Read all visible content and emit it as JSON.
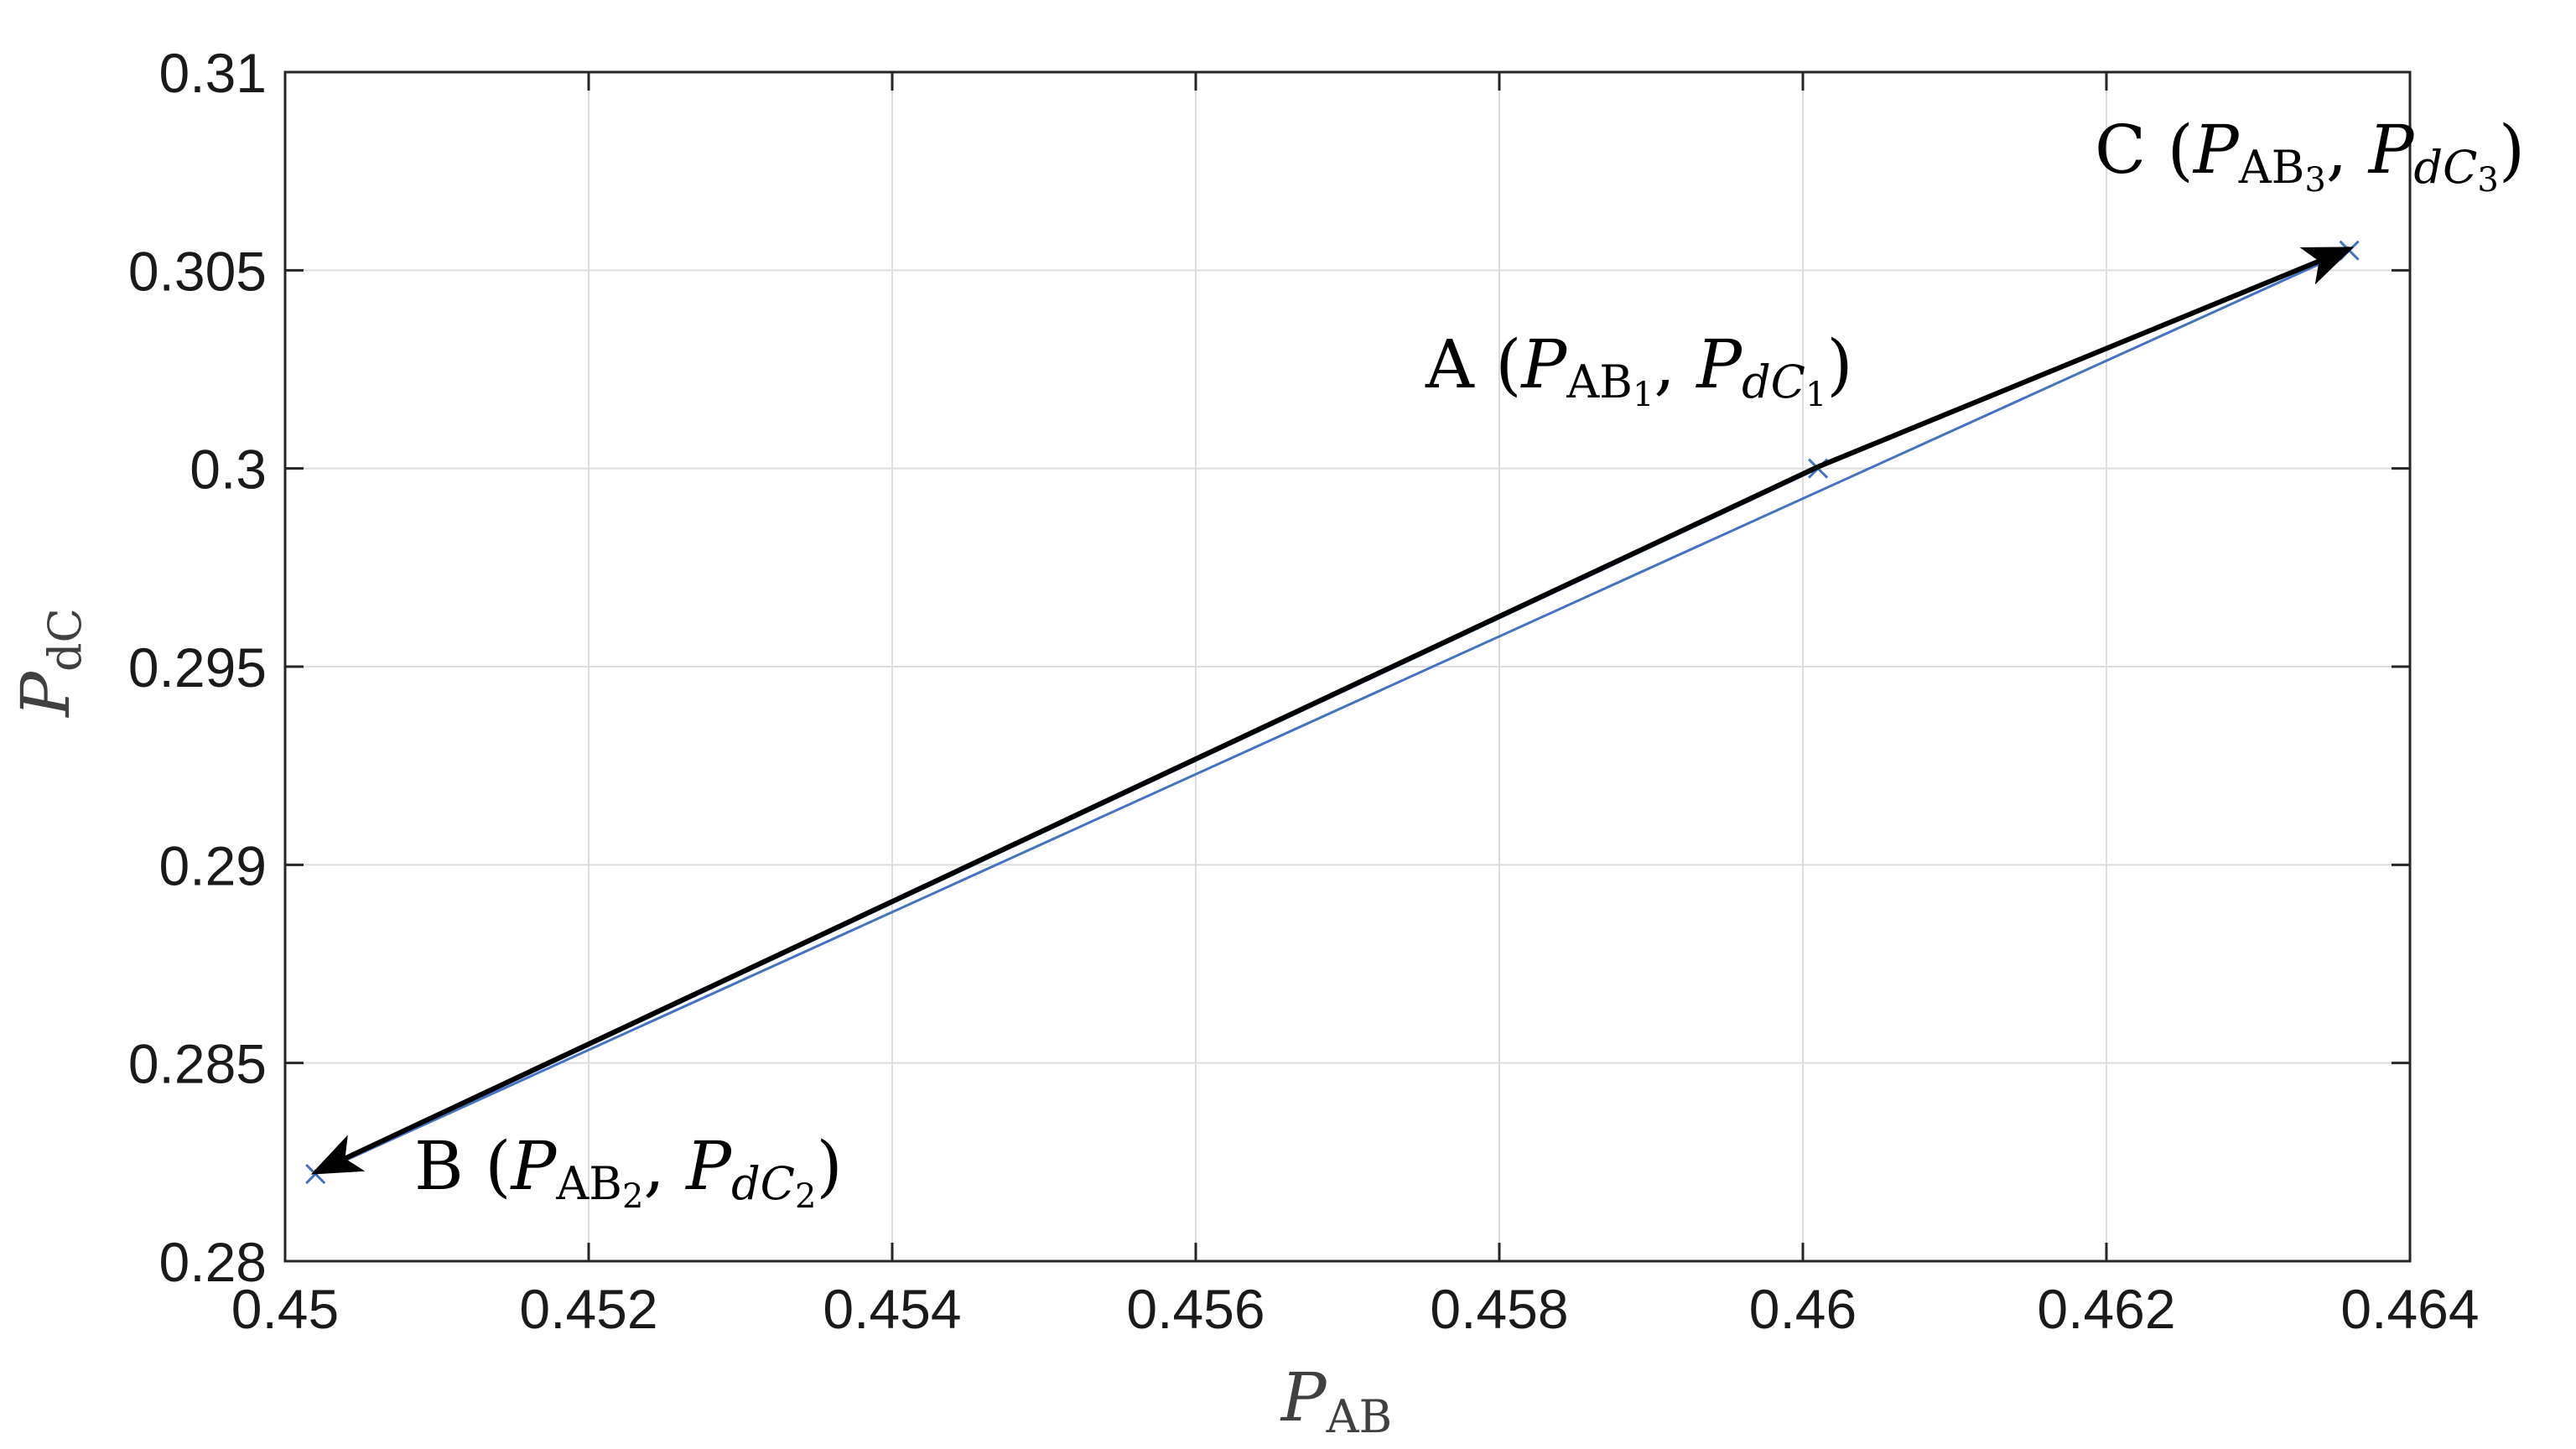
{
  "colors": {
    "series": "#4472c4",
    "arrow": "#000000",
    "grid": "#dcdcdc",
    "axes": "#262626"
  },
  "chart_data": {
    "type": "line",
    "title": "",
    "xlabel": {
      "main": "P",
      "sub": "AB"
    },
    "ylabel": {
      "main": "P",
      "sub": "dC"
    },
    "xlim": [
      0.45,
      0.464
    ],
    "ylim": [
      0.28,
      0.31
    ],
    "grid": true,
    "x_ticks": [
      0.45,
      0.452,
      0.454,
      0.456,
      0.458,
      0.46,
      0.462,
      0.464
    ],
    "x_tick_labels": [
      "0.45",
      "0.452",
      "0.454",
      "0.456",
      "0.458",
      "0.46",
      "0.462",
      "0.464"
    ],
    "y_ticks": [
      0.28,
      0.285,
      0.29,
      0.295,
      0.3,
      0.305,
      0.31
    ],
    "y_tick_labels": [
      "0.28",
      "0.285",
      "0.29",
      "0.295",
      "0.3",
      "0.305",
      "0.31"
    ],
    "series": [
      {
        "marker": "x",
        "points": [
          {
            "x": 0.4601,
            "y": 0.3
          },
          {
            "x": 0.4502,
            "y": 0.2822
          },
          {
            "x": 0.4636,
            "y": 0.3055
          }
        ]
      }
    ],
    "arrows": [
      {
        "from": {
          "x": 0.4601,
          "y": 0.3
        },
        "to": {
          "x": 0.4502,
          "y": 0.2822
        }
      },
      {
        "from": {
          "x": 0.4601,
          "y": 0.3
        },
        "to": {
          "x": 0.4636,
          "y": 0.3055
        }
      }
    ],
    "annotations": [
      {
        "id": "A",
        "label": "A",
        "x_sym": "P",
        "x_sub": "AB",
        "x_idx": "1",
        "y_sym": "P",
        "y_sub": "dC",
        "y_idx": "1",
        "anchor": {
          "x": 0.4601,
          "y": 0.3
        }
      },
      {
        "id": "B",
        "label": "B",
        "x_sym": "P",
        "x_sub": "AB",
        "x_idx": "2",
        "y_sym": "P",
        "y_sub": "dC",
        "y_idx": "2",
        "anchor": {
          "x": 0.4502,
          "y": 0.2822
        }
      },
      {
        "id": "C",
        "label": "C",
        "x_sym": "P",
        "x_sub": "AB",
        "x_idx": "3",
        "y_sym": "P",
        "y_sub": "dC",
        "y_idx": "3",
        "anchor": {
          "x": 0.4636,
          "y": 0.3055
        }
      }
    ]
  }
}
